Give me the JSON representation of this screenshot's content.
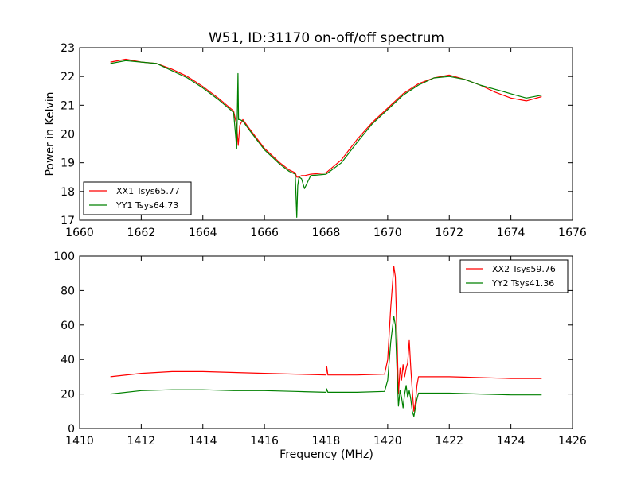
{
  "chart_data": [
    {
      "type": "line",
      "title": "W51, ID:31170 on-off/off spectrum",
      "xlabel": "",
      "ylabel": "Power in Kelvin",
      "xlim": [
        1660,
        1676
      ],
      "ylim": [
        17,
        23
      ],
      "xticks": [
        "1660",
        "1662",
        "1664",
        "1666",
        "1668",
        "1670",
        "1672",
        "1674",
        "1676"
      ],
      "yticks": [
        "17",
        "18",
        "19",
        "20",
        "21",
        "22",
        "23"
      ],
      "legend_position": "lower-left",
      "series": [
        {
          "name": "XX1 Tsys65.77",
          "color": "#ff0000",
          "x": [
            1661.0,
            1661.5,
            1662.0,
            1662.5,
            1663.0,
            1663.5,
            1664.0,
            1664.5,
            1665.0,
            1665.1,
            1665.15,
            1665.2,
            1665.3,
            1665.5,
            1666.0,
            1666.5,
            1666.8,
            1667.0,
            1667.05,
            1667.1,
            1667.2,
            1667.3,
            1667.5,
            1668.0,
            1668.5,
            1669.0,
            1669.5,
            1670.0,
            1670.5,
            1671.0,
            1671.5,
            1672.0,
            1672.5,
            1673.0,
            1673.5,
            1674.0,
            1674.5,
            1675.0
          ],
          "y": [
            22.5,
            22.6,
            22.5,
            22.45,
            22.25,
            22.0,
            21.65,
            21.25,
            20.8,
            20.3,
            19.6,
            20.3,
            20.5,
            20.2,
            19.5,
            19.0,
            18.75,
            18.65,
            18.5,
            18.5,
            18.55,
            18.55,
            18.6,
            18.65,
            19.1,
            19.8,
            20.4,
            20.9,
            21.4,
            21.75,
            21.95,
            22.05,
            21.9,
            21.7,
            21.45,
            21.25,
            21.15,
            21.3
          ]
        },
        {
          "name": "YY1 Tsys64.73",
          "color": "#008000",
          "x": [
            1661.0,
            1661.5,
            1662.0,
            1662.5,
            1663.0,
            1663.5,
            1664.0,
            1664.5,
            1665.0,
            1665.1,
            1665.14,
            1665.16,
            1665.2,
            1665.3,
            1665.5,
            1666.0,
            1666.5,
            1666.8,
            1667.0,
            1667.05,
            1667.08,
            1667.12,
            1667.2,
            1667.3,
            1667.5,
            1668.0,
            1668.5,
            1669.0,
            1669.5,
            1670.0,
            1670.5,
            1671.0,
            1671.5,
            1672.0,
            1672.5,
            1673.0,
            1673.5,
            1674.0,
            1674.5,
            1675.0
          ],
          "y": [
            22.45,
            22.55,
            22.5,
            22.45,
            22.2,
            21.95,
            21.6,
            21.2,
            20.75,
            19.5,
            22.1,
            20.5,
            20.5,
            20.45,
            20.15,
            19.45,
            18.95,
            18.7,
            18.6,
            17.1,
            18.2,
            18.5,
            18.45,
            18.1,
            18.55,
            18.6,
            19.0,
            19.7,
            20.35,
            20.85,
            21.35,
            21.7,
            21.95,
            22.0,
            21.9,
            21.7,
            21.55,
            21.4,
            21.25,
            21.35
          ]
        }
      ]
    },
    {
      "type": "line",
      "title": "",
      "xlabel": "Frequency (MHz)",
      "ylabel": "",
      "xlim": [
        1410,
        1426
      ],
      "ylim": [
        0,
        100
      ],
      "xticks": [
        "1410",
        "1412",
        "1414",
        "1416",
        "1418",
        "1420",
        "1422",
        "1424",
        "1426"
      ],
      "yticks": [
        "0",
        "20",
        "40",
        "60",
        "80",
        "100"
      ],
      "legend_position": "upper-right",
      "series": [
        {
          "name": "XX2 Tsys59.76",
          "color": "#ff0000",
          "x": [
            1411.0,
            1412.0,
            1413.0,
            1414.0,
            1415.0,
            1416.0,
            1417.0,
            1418.0,
            1418.02,
            1418.06,
            1419.0,
            1419.9,
            1420.0,
            1420.1,
            1420.2,
            1420.25,
            1420.3,
            1420.35,
            1420.4,
            1420.45,
            1420.5,
            1420.55,
            1420.6,
            1420.65,
            1420.7,
            1420.75,
            1420.8,
            1420.85,
            1420.9,
            1420.95,
            1421.0,
            1421.2,
            1422.0,
            1423.0,
            1424.0,
            1425.0
          ],
          "y": [
            30.0,
            32.0,
            33.0,
            33.0,
            32.5,
            32.0,
            31.5,
            31.0,
            36.0,
            31.0,
            31.0,
            31.5,
            40.0,
            70.0,
            94.0,
            88.0,
            55.0,
            20.0,
            35.0,
            28.0,
            37.0,
            30.0,
            35.0,
            38.0,
            51.0,
            35.0,
            22.0,
            10.0,
            15.0,
            25.0,
            30.0,
            30.0,
            30.0,
            29.5,
            29.0,
            29.0
          ]
        },
        {
          "name": "YY2 Tsys41.36",
          "color": "#008000",
          "x": [
            1411.0,
            1412.0,
            1413.0,
            1414.0,
            1415.0,
            1416.0,
            1417.0,
            1418.0,
            1418.02,
            1418.06,
            1419.0,
            1419.9,
            1420.0,
            1420.1,
            1420.2,
            1420.25,
            1420.3,
            1420.35,
            1420.4,
            1420.45,
            1420.5,
            1420.55,
            1420.6,
            1420.65,
            1420.7,
            1420.75,
            1420.8,
            1420.85,
            1420.9,
            1420.95,
            1421.0,
            1421.2,
            1422.0,
            1423.0,
            1424.0,
            1425.0
          ],
          "y": [
            20.0,
            22.0,
            22.5,
            22.5,
            22.0,
            22.0,
            21.5,
            21.0,
            23.0,
            21.0,
            21.0,
            21.5,
            28.0,
            50.0,
            65.0,
            60.0,
            35.0,
            13.0,
            22.0,
            18.0,
            12.0,
            20.0,
            25.0,
            18.0,
            22.0,
            17.0,
            10.0,
            7.0,
            12.0,
            17.0,
            20.5,
            20.5,
            20.5,
            20.0,
            19.5,
            19.5
          ]
        }
      ]
    }
  ]
}
